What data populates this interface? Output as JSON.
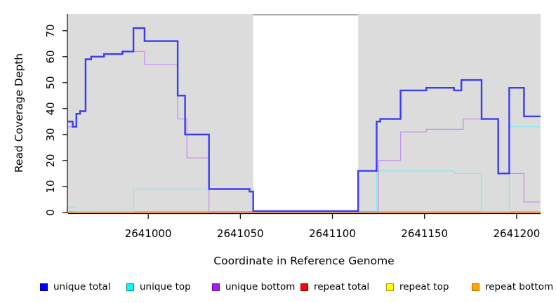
{
  "chart_data": {
    "type": "line",
    "step": true,
    "title": "",
    "xlabel": "Coordinate in Reference Genome",
    "ylabel": "Read Coverage Depth",
    "xlim": [
      2640956.5,
      2641213
    ],
    "ylim": [
      0,
      77
    ],
    "grid": false,
    "x_ticks": [
      {
        "label": "2641000",
        "at": 2641000
      },
      {
        "label": "2641050",
        "at": 2641050
      },
      {
        "label": "2641100",
        "at": 2641100
      },
      {
        "label": "2641150",
        "at": 2641150
      },
      {
        "label": "2641200",
        "at": 2641200
      }
    ],
    "y_ticks": [
      {
        "label": "0",
        "at": 0
      },
      {
        "label": "10",
        "at": 10
      },
      {
        "label": "20",
        "at": 20
      },
      {
        "label": "30",
        "at": 30
      },
      {
        "label": "40",
        "at": 40
      },
      {
        "label": "50",
        "at": 50
      },
      {
        "label": "60",
        "at": 60
      },
      {
        "label": "70",
        "at": 70
      }
    ],
    "background_regions": [
      {
        "name": "covered-region-left",
        "x0": 2640956.5,
        "x1": 2641057,
        "color": "#DCDCDC"
      },
      {
        "name": "masked-gap",
        "x0": 2641057,
        "x1": 2641114,
        "color": "#FFFFFF",
        "top_border_color": "#8C8C8C"
      },
      {
        "name": "covered-region-right",
        "x0": 2641114,
        "x1": 2641213,
        "color": "#DCDCDC"
      }
    ],
    "series": [
      {
        "name": "repeat top",
        "color": "#FFFF33",
        "line_width": 1.2,
        "points": [
          [
            2640956.5,
            0
          ]
        ]
      },
      {
        "name": "repeat total",
        "color": "#F05050",
        "line_width": 1.2,
        "points": [
          [
            2640956.5,
            0
          ]
        ]
      },
      {
        "name": "repeat bottom",
        "color": "#FFA510",
        "line_width": 1.7,
        "points": [
          [
            2640956.5,
            0.2
          ]
        ]
      },
      {
        "name": "unique top",
        "color": "#8AE7EF",
        "line_width": 1.3,
        "points": [
          [
            2640956.5,
            2
          ],
          [
            2640960,
            0.4
          ],
          [
            2640992,
            9
          ],
          [
            2641057,
            0.4
          ],
          [
            2641124,
            16
          ],
          [
            2641166,
            15
          ],
          [
            2641181,
            0.4
          ],
          [
            2641196,
            33
          ]
        ]
      },
      {
        "name": "unique bottom",
        "color": "#C793E8",
        "line_width": 1.3,
        "points": [
          [
            2640956.5,
            33
          ],
          [
            2640961,
            38
          ],
          [
            2640963,
            39
          ],
          [
            2640966,
            59
          ],
          [
            2640969,
            60
          ],
          [
            2640976,
            61
          ],
          [
            2640986,
            62
          ],
          [
            2640998,
            57
          ],
          [
            2641016,
            36
          ],
          [
            2641021,
            21
          ],
          [
            2641033,
            0.3
          ],
          [
            2641125,
            20
          ],
          [
            2641137,
            31
          ],
          [
            2641151,
            32
          ],
          [
            2641171,
            36
          ],
          [
            2641190,
            15
          ],
          [
            2641204,
            4
          ]
        ]
      },
      {
        "name": "unique total",
        "color": "#3C3CF0",
        "line_width": 2.4,
        "points": [
          [
            2640956.5,
            35
          ],
          [
            2640959,
            33
          ],
          [
            2640961,
            38
          ],
          [
            2640963,
            39
          ],
          [
            2640966,
            59
          ],
          [
            2640969,
            60
          ],
          [
            2640976,
            61
          ],
          [
            2640986,
            62
          ],
          [
            2640992,
            71
          ],
          [
            2640998,
            66
          ],
          [
            2641016,
            45
          ],
          [
            2641020,
            30
          ],
          [
            2641033,
            9
          ],
          [
            2641055,
            8
          ],
          [
            2641057,
            0.5
          ],
          [
            2641114,
            16
          ],
          [
            2641124,
            35
          ],
          [
            2641126,
            36
          ],
          [
            2641137,
            47
          ],
          [
            2641151,
            48
          ],
          [
            2641166,
            47
          ],
          [
            2641170,
            51
          ],
          [
            2641181,
            36
          ],
          [
            2641190,
            15
          ],
          [
            2641196,
            48
          ],
          [
            2641204,
            37
          ]
        ]
      }
    ],
    "legend": [
      {
        "label": "unique total",
        "fill": "#0000FF",
        "border": "#0000A0"
      },
      {
        "label": "unique top",
        "fill": "#00FFFF",
        "border": "#008B8B"
      },
      {
        "label": "unique bottom",
        "fill": "#A020F0",
        "border": "#6A0DAD"
      },
      {
        "label": "repeat total",
        "fill": "#FF0000",
        "border": "#A00000"
      },
      {
        "label": "repeat top",
        "fill": "#FFFF00",
        "border": "#9A9A00"
      },
      {
        "label": "repeat bottom",
        "fill": "#FFA500",
        "border": "#B36B00"
      }
    ],
    "legend_position": "bottom"
  }
}
